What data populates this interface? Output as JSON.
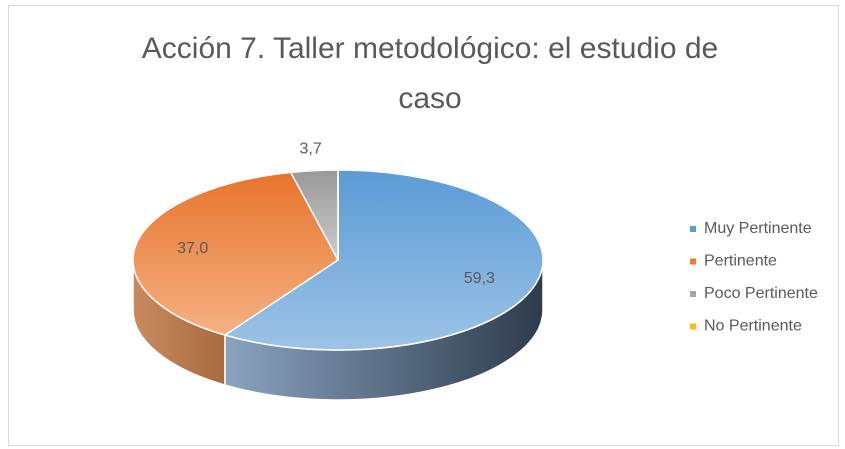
{
  "chart_data": {
    "type": "pie3d",
    "title": "Acción 7. Taller metodológico: el estudio de caso",
    "categories": [
      "Muy Pertinente",
      "Pertinente",
      "Poco Pertinente",
      "No Pertinente"
    ],
    "values": [
      59.3,
      37.0,
      3.7,
      0
    ],
    "value_labels": [
      "59,3",
      "37,0",
      "3,7",
      null
    ],
    "colors": [
      "#5b9bd5",
      "#ed7d31",
      "#a5a5a5",
      "#ffc000"
    ],
    "legend": "right"
  }
}
